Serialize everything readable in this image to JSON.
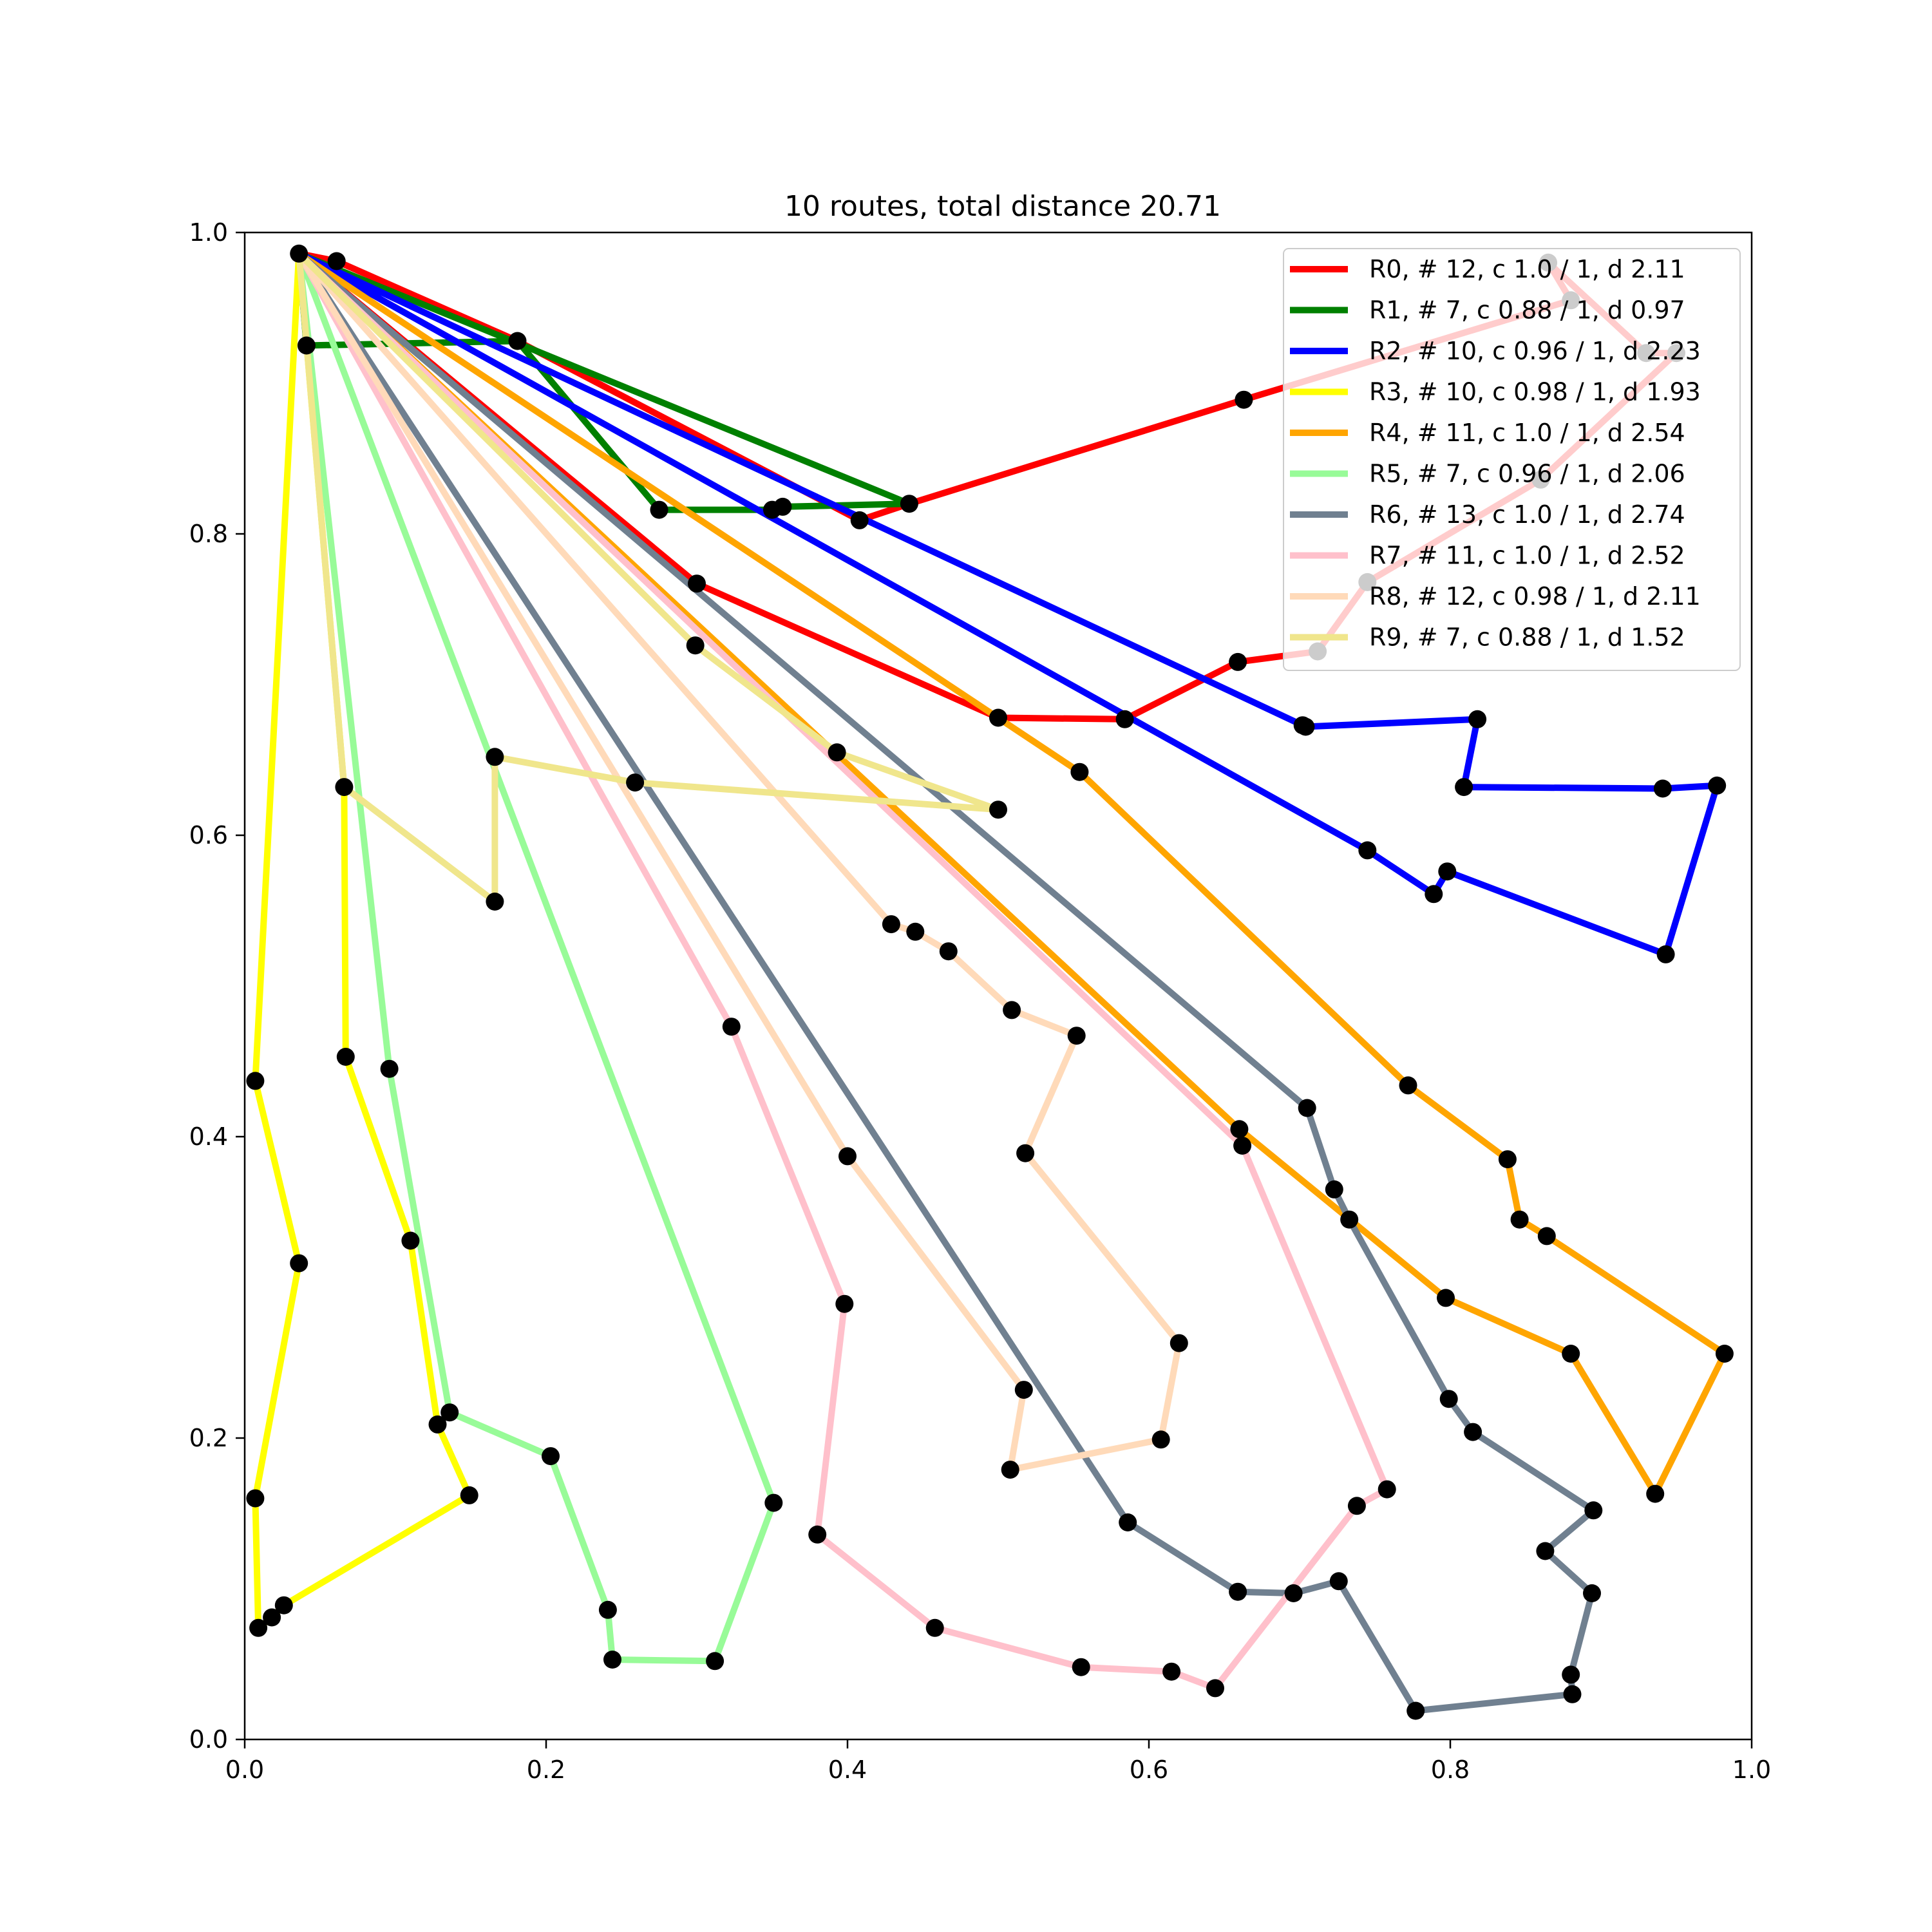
{
  "chart_data": {
    "type": "line",
    "title": "10 routes, total distance 20.71",
    "xlabel": "",
    "ylabel": "",
    "xlim": [
      0.0,
      1.0
    ],
    "ylim": [
      0.0,
      1.0
    ],
    "xticks": [
      "0.0",
      "0.2",
      "0.4",
      "0.6",
      "0.8",
      "1.0"
    ],
    "yticks": [
      "0.0",
      "0.2",
      "0.4",
      "0.6",
      "0.8",
      "1.0"
    ],
    "grid": false,
    "legend_position": "top-right",
    "depot": [
      0.036,
      0.986
    ],
    "series": [
      {
        "name": "R0, # 12, c 1.0 / 1, d 2.11",
        "color": "#ff0000",
        "points": [
          [
            0.036,
            0.986
          ],
          [
            0.061,
            0.981
          ],
          [
            0.181,
            0.928
          ],
          [
            0.408,
            0.809
          ],
          [
            0.441,
            0.82
          ],
          [
            0.663,
            0.889
          ],
          [
            0.88,
            0.955
          ],
          [
            0.865,
            0.98
          ],
          [
            0.93,
            0.92
          ],
          [
            0.95,
            0.92
          ],
          [
            0.86,
            0.836
          ],
          [
            0.745,
            0.768
          ],
          [
            0.712,
            0.722
          ],
          [
            0.659,
            0.715
          ],
          [
            0.584,
            0.677
          ],
          [
            0.5,
            0.678
          ],
          [
            0.3,
            0.767
          ],
          [
            0.036,
            0.986
          ]
        ]
      },
      {
        "name": "R1, # 7, c 0.88 / 1, d 0.97",
        "color": "#008000",
        "points": [
          [
            0.036,
            0.986
          ],
          [
            0.041,
            0.925
          ],
          [
            0.181,
            0.928
          ],
          [
            0.275,
            0.816
          ],
          [
            0.35,
            0.816
          ],
          [
            0.357,
            0.818
          ],
          [
            0.441,
            0.82
          ],
          [
            0.036,
            0.986
          ]
        ]
      },
      {
        "name": "R2, # 10, c 0.96 / 1, d 2.23",
        "color": "#0000ff",
        "points": [
          [
            0.036,
            0.986
          ],
          [
            0.702,
            0.673
          ],
          [
            0.704,
            0.672
          ],
          [
            0.818,
            0.677
          ],
          [
            0.809,
            0.632
          ],
          [
            0.941,
            0.631
          ],
          [
            0.977,
            0.633
          ],
          [
            0.943,
            0.521
          ],
          [
            0.798,
            0.576
          ],
          [
            0.789,
            0.561
          ],
          [
            0.745,
            0.59
          ],
          [
            0.036,
            0.986
          ]
        ]
      },
      {
        "name": "R3, # 10, c 0.98 / 1, d 1.93",
        "color": "#ffff00",
        "points": [
          [
            0.036,
            0.986
          ],
          [
            0.066,
            0.632
          ],
          [
            0.067,
            0.453
          ],
          [
            0.11,
            0.331
          ],
          [
            0.128,
            0.209
          ],
          [
            0.149,
            0.162
          ],
          [
            0.026,
            0.089
          ],
          [
            0.018,
            0.081
          ],
          [
            0.009,
            0.074
          ],
          [
            0.007,
            0.16
          ],
          [
            0.036,
            0.316
          ],
          [
            0.007,
            0.437
          ],
          [
            0.036,
            0.986
          ]
        ]
      },
      {
        "name": "R4, # 11, c 1.0 / 1, d 2.54",
        "color": "#ffa500",
        "points": [
          [
            0.036,
            0.986
          ],
          [
            0.554,
            0.642
          ],
          [
            0.772,
            0.434
          ],
          [
            0.838,
            0.385
          ],
          [
            0.846,
            0.345
          ],
          [
            0.864,
            0.334
          ],
          [
            0.982,
            0.256
          ],
          [
            0.936,
            0.163
          ],
          [
            0.88,
            0.256
          ],
          [
            0.797,
            0.293
          ],
          [
            0.66,
            0.405
          ],
          [
            0.036,
            0.986
          ]
        ]
      },
      {
        "name": "R5, # 7, c 0.96 / 1, d 2.06",
        "color": "#98fb98",
        "points": [
          [
            0.036,
            0.986
          ],
          [
            0.096,
            0.445
          ],
          [
            0.136,
            0.217
          ],
          [
            0.203,
            0.188
          ],
          [
            0.241,
            0.086
          ],
          [
            0.244,
            0.053
          ],
          [
            0.312,
            0.052
          ],
          [
            0.351,
            0.157
          ],
          [
            0.036,
            0.986
          ]
        ]
      },
      {
        "name": "R6, # 13, c 1.0 / 1, d 2.74",
        "color": "#708090",
        "points": [
          [
            0.036,
            0.986
          ],
          [
            0.705,
            0.419
          ],
          [
            0.723,
            0.365
          ],
          [
            0.733,
            0.345
          ],
          [
            0.799,
            0.226
          ],
          [
            0.815,
            0.204
          ],
          [
            0.895,
            0.152
          ],
          [
            0.863,
            0.125
          ],
          [
            0.894,
            0.097
          ],
          [
            0.88,
            0.043
          ],
          [
            0.881,
            0.03
          ],
          [
            0.777,
            0.019
          ],
          [
            0.726,
            0.105
          ],
          [
            0.696,
            0.097
          ],
          [
            0.659,
            0.098
          ],
          [
            0.586,
            0.144
          ],
          [
            0.036,
            0.986
          ]
        ]
      },
      {
        "name": "R7, # 11, c 1.0 / 1, d 2.52",
        "color": "#ffc0cb",
        "points": [
          [
            0.036,
            0.986
          ],
          [
            0.323,
            0.473
          ],
          [
            0.398,
            0.289
          ],
          [
            0.38,
            0.136
          ],
          [
            0.458,
            0.074
          ],
          [
            0.555,
            0.048
          ],
          [
            0.615,
            0.045
          ],
          [
            0.644,
            0.034
          ],
          [
            0.738,
            0.155
          ],
          [
            0.758,
            0.166
          ],
          [
            0.662,
            0.394
          ],
          [
            0.036,
            0.986
          ]
        ]
      },
      {
        "name": "R8, # 12, c 0.98 / 1, d 2.11",
        "color": "#ffdab9",
        "points": [
          [
            0.036,
            0.986
          ],
          [
            0.429,
            0.541
          ],
          [
            0.445,
            0.536
          ],
          [
            0.467,
            0.523
          ],
          [
            0.509,
            0.484
          ],
          [
            0.552,
            0.467
          ],
          [
            0.518,
            0.389
          ],
          [
            0.62,
            0.263
          ],
          [
            0.608,
            0.199
          ],
          [
            0.508,
            0.179
          ],
          [
            0.517,
            0.232
          ],
          [
            0.4,
            0.387
          ],
          [
            0.036,
            0.986
          ]
        ]
      },
      {
        "name": "R9, # 7, c 0.88 / 1, d 1.52",
        "color": "#f0e68c",
        "points": [
          [
            0.036,
            0.986
          ],
          [
            0.299,
            0.726
          ],
          [
            0.393,
            0.655
          ],
          [
            0.5,
            0.617
          ],
          [
            0.259,
            0.635
          ],
          [
            0.166,
            0.652
          ],
          [
            0.166,
            0.556
          ],
          [
            0.066,
            0.632
          ],
          [
            0.036,
            0.986
          ]
        ]
      }
    ]
  }
}
